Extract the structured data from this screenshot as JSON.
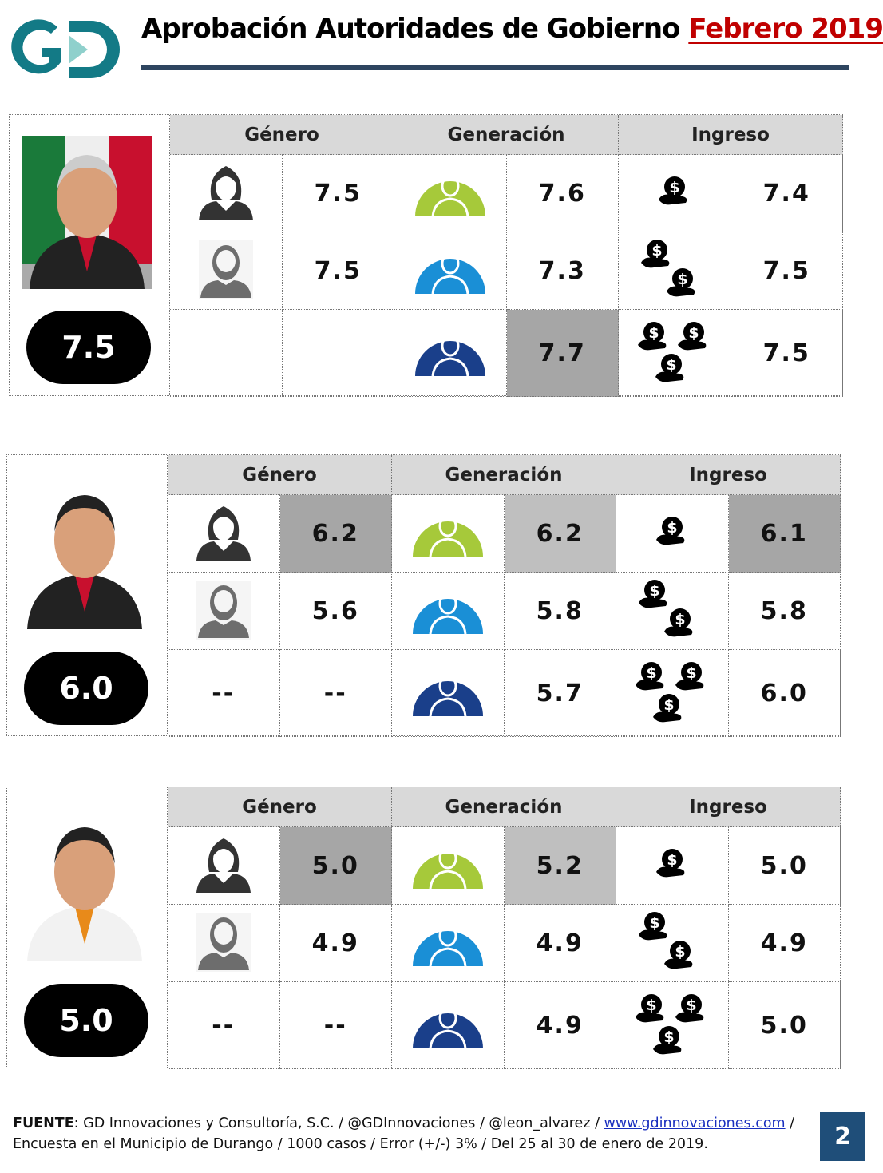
{
  "header": {
    "title": "Aprobación Autoridades de Gobierno",
    "title_highlight": "Febrero 2019",
    "logo_text": "GD"
  },
  "colors": {
    "accent": "#c00000",
    "rule": "#2e4560",
    "gen_young": "#a6c93a",
    "gen_adult": "#1a8fd6",
    "gen_senior": "#1a3f8a",
    "page_box": "#1f4e79"
  },
  "column_headers": [
    "Género",
    "Generación",
    "Ingreso"
  ],
  "panels": [
    {
      "score": "7.5",
      "genero": [
        {
          "icon": "woman-icon",
          "value": "7.5"
        },
        {
          "icon": "man-icon",
          "value": "7.5"
        },
        {
          "icon": "",
          "value": ""
        }
      ],
      "generacion": [
        "7.6",
        "7.3",
        "7.7"
      ],
      "ingreso": [
        "7.4",
        "7.5",
        "7.5"
      ],
      "highlight": [
        "generacion.2"
      ]
    },
    {
      "score": "6.0",
      "genero": [
        {
          "icon": "woman-icon",
          "value": "6.2"
        },
        {
          "icon": "man-icon",
          "value": "5.6"
        },
        {
          "icon": "--",
          "value": "--"
        }
      ],
      "generacion": [
        "6.2",
        "5.8",
        "5.7"
      ],
      "ingreso": [
        "6.1",
        "5.8",
        "6.0"
      ],
      "highlight": [
        "genero.0",
        "generacion.0",
        "ingreso.0"
      ]
    },
    {
      "score": "5.0",
      "genero": [
        {
          "icon": "woman-icon",
          "value": "5.0"
        },
        {
          "icon": "man-icon",
          "value": "4.9"
        },
        {
          "icon": "--",
          "value": "--"
        }
      ],
      "generacion": [
        "5.2",
        "4.9",
        "4.9"
      ],
      "ingreso": [
        "5.0",
        "4.9",
        "5.0"
      ],
      "highlight": [
        "genero.0",
        "generacion.0"
      ]
    }
  ],
  "footer": {
    "label": "FUENTE",
    "line1": ": GD Innovaciones y Consultoría, S.C. / @GDInnovaciones / @leon_alvarez / ",
    "link": "www.gdinnovaciones.com",
    "line1_end": " /",
    "line2": "Encuesta en el Municipio de Durango / 1000 casos / Error (+/-) 3% / Del 25 al 30 de enero de 2019."
  },
  "page_number": "2"
}
